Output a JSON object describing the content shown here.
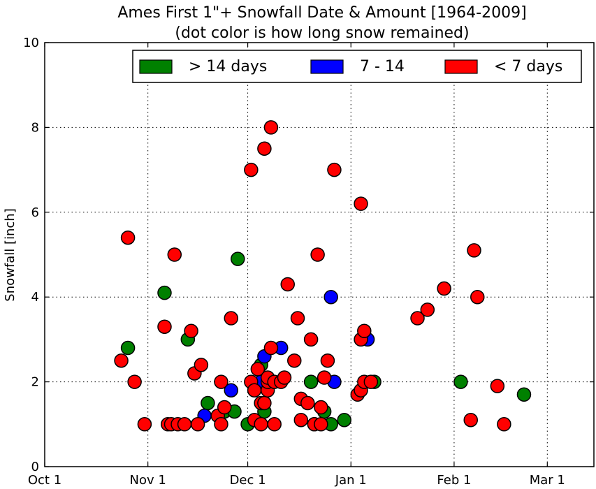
{
  "chart_data": {
    "type": "scatter",
    "title": "Ames First 1\"+ Snowfall Date & Amount [1964-2009]",
    "subtitle": "(dot color is how long snow remained)",
    "xlabel": "",
    "ylabel": "Snowfall [inch]",
    "x_unit": "day offset from Oct 1",
    "xlim": [
      0,
      165
    ],
    "ylim": [
      0,
      10
    ],
    "x_ticks": [
      {
        "value": 0,
        "label": "Oct 1"
      },
      {
        "value": 31,
        "label": "Nov 1"
      },
      {
        "value": 61,
        "label": "Dec 1"
      },
      {
        "value": 92,
        "label": "Jan 1"
      },
      {
        "value": 123,
        "label": "Feb 1"
      },
      {
        "value": 151,
        "label": "Mar 1"
      }
    ],
    "y_ticks": [
      0,
      2,
      4,
      6,
      8,
      10
    ],
    "grid": true,
    "legend_position": "top-right",
    "series": [
      {
        "name": "> 14 days",
        "color": "#008000",
        "points": [
          [
            25,
            2.8
          ],
          [
            36,
            4.1
          ],
          [
            43,
            3.0
          ],
          [
            58,
            4.9
          ],
          [
            49,
            1.5
          ],
          [
            54,
            1.3
          ],
          [
            57,
            1.3
          ],
          [
            61,
            1.0
          ],
          [
            65,
            2.4
          ],
          [
            66,
            1.3
          ],
          [
            80,
            2.0
          ],
          [
            81,
            1.0
          ],
          [
            84,
            1.3
          ],
          [
            86,
            1.0
          ],
          [
            90,
            1.1
          ],
          [
            99,
            2.0
          ],
          [
            125,
            2.0
          ],
          [
            144,
            1.7
          ]
        ]
      },
      {
        "name": "7 - 14",
        "color": "#0000ff",
        "points": [
          [
            48,
            1.2
          ],
          [
            56,
            1.8
          ],
          [
            65,
            2.0
          ],
          [
            66,
            2.6
          ],
          [
            71,
            2.8
          ],
          [
            86,
            4.0
          ],
          [
            87,
            2.0
          ],
          [
            97,
            3.0
          ]
        ]
      },
      {
        "name": "< 7 days",
        "color": "#ff0000",
        "points": [
          [
            23,
            2.5
          ],
          [
            25,
            5.4
          ],
          [
            27,
            2.0
          ],
          [
            30,
            1.0
          ],
          [
            36,
            3.3
          ],
          [
            37,
            1.0
          ],
          [
            38,
            1.0
          ],
          [
            40,
            1.0
          ],
          [
            42,
            1.0
          ],
          [
            39,
            5.0
          ],
          [
            44,
            3.2
          ],
          [
            45,
            2.2
          ],
          [
            46,
            1.0
          ],
          [
            47,
            2.4
          ],
          [
            52,
            1.2
          ],
          [
            53,
            1.0
          ],
          [
            53,
            2.0
          ],
          [
            54,
            1.4
          ],
          [
            56,
            3.5
          ],
          [
            62,
            2.0
          ],
          [
            62,
            7.0
          ],
          [
            63,
            1.8
          ],
          [
            63,
            1.1
          ],
          [
            64,
            2.3
          ],
          [
            65,
            1.0
          ],
          [
            65,
            1.5
          ],
          [
            66,
            7.5
          ],
          [
            66,
            1.5
          ],
          [
            67,
            1.8
          ],
          [
            67,
            2.0
          ],
          [
            67,
            2.1
          ],
          [
            68,
            2.8
          ],
          [
            68,
            8.0
          ],
          [
            69,
            1.0
          ],
          [
            69,
            2.0
          ],
          [
            71,
            2.0
          ],
          [
            72,
            2.1
          ],
          [
            73,
            4.3
          ],
          [
            75,
            2.5
          ],
          [
            76,
            3.5
          ],
          [
            77,
            1.6
          ],
          [
            77,
            1.1
          ],
          [
            79,
            1.5
          ],
          [
            80,
            3.0
          ],
          [
            81,
            1.0
          ],
          [
            82,
            5.0
          ],
          [
            83,
            1.4
          ],
          [
            83,
            1.0
          ],
          [
            84,
            2.1
          ],
          [
            85,
            2.5
          ],
          [
            87,
            7.0
          ],
          [
            94,
            1.7
          ],
          [
            95,
            6.2
          ],
          [
            95,
            3.0
          ],
          [
            95,
            1.8
          ],
          [
            96,
            3.2
          ],
          [
            96,
            2.0
          ],
          [
            98,
            2.0
          ],
          [
            112,
            3.5
          ],
          [
            115,
            3.7
          ],
          [
            120,
            4.2
          ],
          [
            128,
            1.1
          ],
          [
            129,
            5.1
          ],
          [
            130,
            4.0
          ],
          [
            136,
            1.9
          ],
          [
            138,
            1.0
          ]
        ]
      }
    ]
  }
}
